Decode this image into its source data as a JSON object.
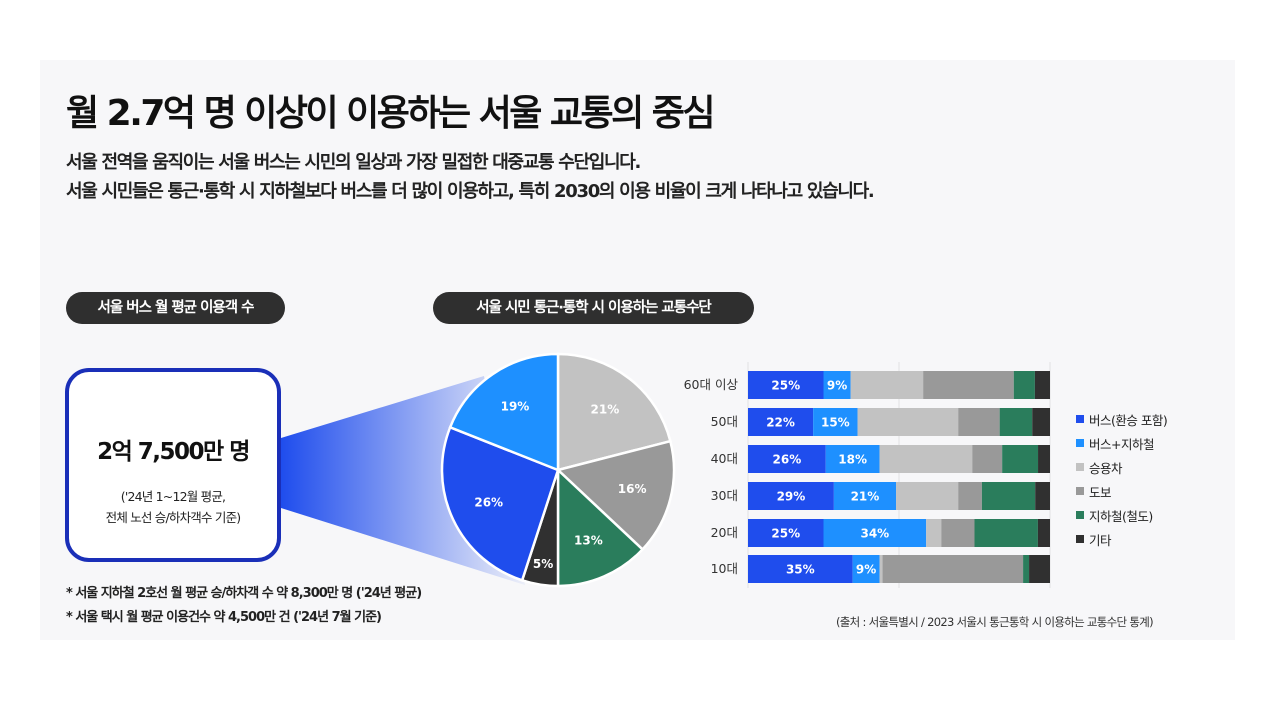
{
  "header": {
    "title": "월 2.7억 명 이상이 이용하는 서울 교통의 중심",
    "subtitle_line1": "서울 전역을 움직이는 서울 버스는 시민의 일상과 가장 밀접한 대중교통 수단입니다.",
    "subtitle_line2": "서울 시민들은 통근·통학 시 지하철보다 버스를 더 많이 이용하고, 특히 2030의 이용 비율이 크게 나타나고 있습니다."
  },
  "left_section": {
    "pill_label": "서울 버스 월 평균 이용객 수",
    "stat_value": "2억 7,500만 명",
    "stat_note_line1": "('24년 1~12월 평균,",
    "stat_note_line2": "전체 노선 승/하차객수 기준)",
    "footnote1": "* 서울 지하철 2호선 월 평균 승/하차객 수 약 8,300만 명 ('24년 평균)",
    "footnote2": "* 서울 택시 월 평균 이용건수 약 4,500만 건 ('24년 7월 기준)"
  },
  "right_section": {
    "pill_label": "서울 시민 통근·통학 시 이용하는 교통수단",
    "source": "(출처 : 서울특별시 / 2023 서울시 통근통학 시 이용하는 교통수단 통계)"
  },
  "colors": {
    "bus": "#1f4ded",
    "bus_subway": "#1e90ff",
    "car": "#c2c2c2",
    "walk": "#999999",
    "subway": "#2a7d5c",
    "other": "#303030"
  },
  "chart_data": [
    {
      "type": "pie",
      "labels": [
        "버스(환승 포함)",
        "버스+지하철",
        "승용차",
        "도보",
        "지하철(철도)",
        "기타"
      ],
      "values": [
        26,
        19,
        21,
        16,
        13,
        5
      ],
      "value_labels": [
        "26%",
        "19%",
        "21%",
        "16%",
        "13%",
        "5%"
      ],
      "colors": [
        "#1f4ded",
        "#1e90ff",
        "#c2c2c2",
        "#999999",
        "#2a7d5c",
        "#303030"
      ]
    },
    {
      "type": "bar",
      "orientation": "horizontal",
      "stacked": true,
      "normalized": true,
      "categories": [
        "60대 이상",
        "50대",
        "40대",
        "30대",
        "20대",
        "10대"
      ],
      "series": [
        {
          "name": "버스(환승 포함)",
          "values": [
            25,
            22,
            26,
            29,
            25,
            35
          ],
          "labels": [
            "25%",
            "22%",
            "26%",
            "29%",
            "25%",
            "35%"
          ]
        },
        {
          "name": "버스+지하철",
          "values": [
            9,
            15,
            18,
            21,
            34,
            9
          ],
          "labels": [
            "9%",
            "15%",
            "18%",
            "21%",
            "34%",
            "9%"
          ]
        },
        {
          "name": "승용차",
          "values": [
            24,
            34,
            31,
            21,
            5,
            1
          ]
        },
        {
          "name": "도보",
          "values": [
            30,
            14,
            10,
            8,
            11,
            47
          ]
        },
        {
          "name": "지하철(철도)",
          "values": [
            7,
            11,
            12,
            18,
            21,
            2
          ]
        },
        {
          "name": "기타",
          "values": [
            5,
            6,
            4,
            5,
            4,
            7
          ]
        }
      ],
      "legend_position": "right",
      "legend": [
        "버스(환승 포함)",
        "버스+지하철",
        "승용차",
        "도보",
        "지하철(철도)",
        "기타"
      ]
    }
  ]
}
